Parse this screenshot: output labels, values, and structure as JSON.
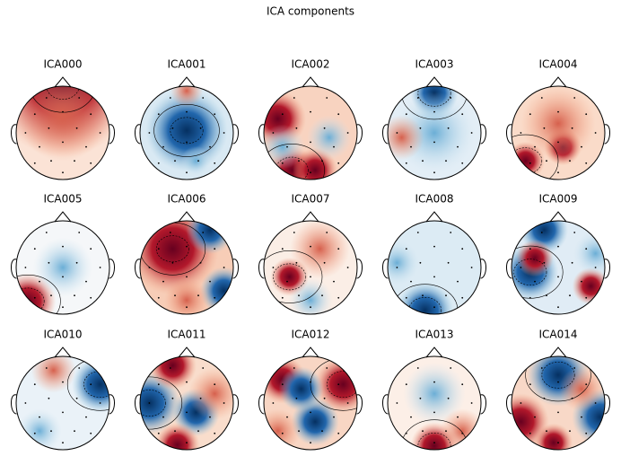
{
  "title": "ICA components",
  "components": [
    "ICA000",
    "ICA001",
    "ICA002",
    "ICA003",
    "ICA004",
    "ICA005",
    "ICA006",
    "ICA007",
    "ICA008",
    "ICA009",
    "ICA010",
    "ICA011",
    "ICA012",
    "ICA013",
    "ICA014"
  ]
}
